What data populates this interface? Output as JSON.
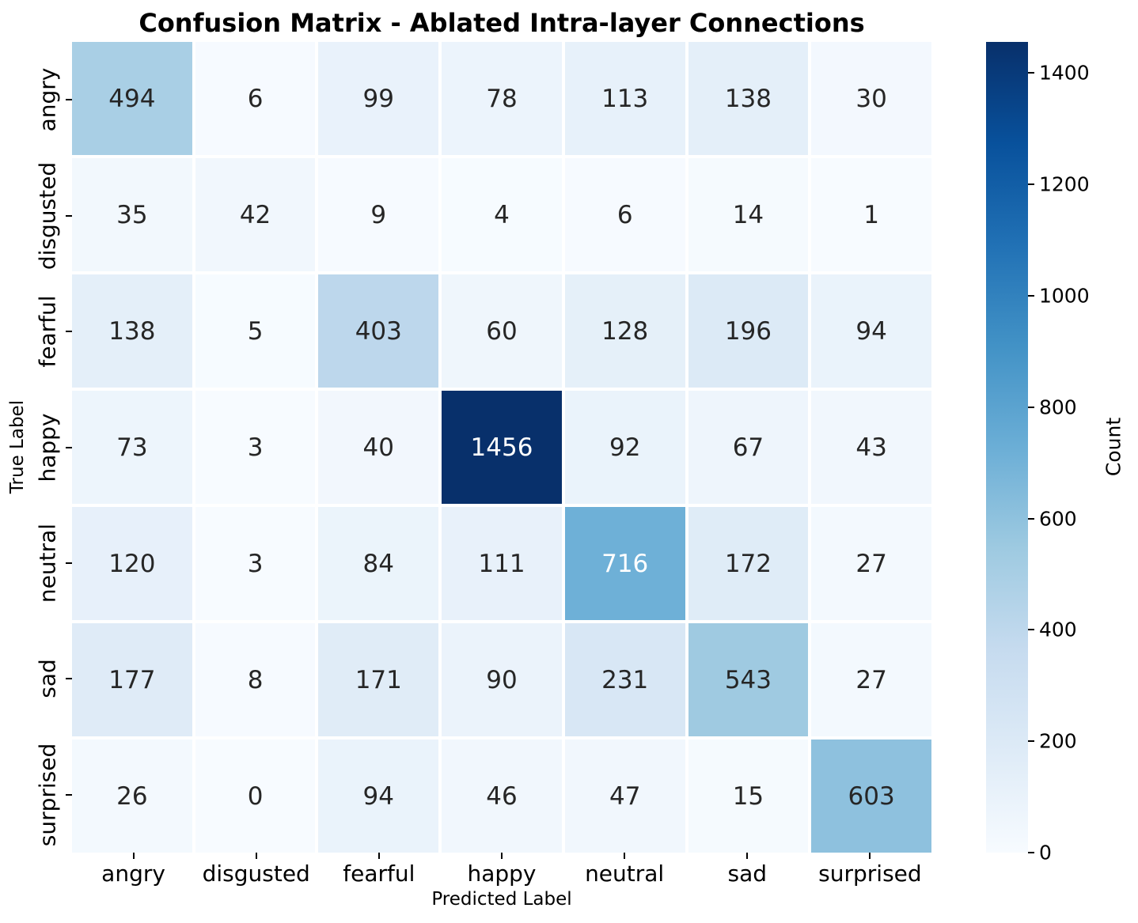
{
  "chart_data": {
    "type": "heatmap",
    "title": "Confusion Matrix - Ablated Intra-layer Connections",
    "xlabel": "Predicted Label",
    "ylabel": "True Label",
    "x_categories": [
      "angry",
      "disgusted",
      "fearful",
      "happy",
      "neutral",
      "sad",
      "surprised"
    ],
    "y_categories": [
      "angry",
      "disgusted",
      "fearful",
      "happy",
      "neutral",
      "sad",
      "surprised"
    ],
    "values": [
      [
        494,
        6,
        99,
        78,
        113,
        138,
        30
      ],
      [
        35,
        42,
        9,
        4,
        6,
        14,
        1
      ],
      [
        138,
        5,
        403,
        60,
        128,
        196,
        94
      ],
      [
        73,
        3,
        40,
        1456,
        92,
        67,
        43
      ],
      [
        120,
        3,
        84,
        111,
        716,
        172,
        27
      ],
      [
        177,
        8,
        171,
        90,
        231,
        543,
        27
      ],
      [
        26,
        0,
        94,
        46,
        47,
        15,
        603
      ]
    ],
    "vmin": 0,
    "vmax": 1456,
    "colormap": "Blues",
    "colormap_stops": [
      "#f7fbff",
      "#deebf7",
      "#c6dbef",
      "#9ecae1",
      "#6baed6",
      "#4292c6",
      "#2171b5",
      "#08519c",
      "#08306b"
    ],
    "annotation_text_dark": "#262626",
    "annotation_text_light": "#ffffff",
    "annotated": true,
    "grid": false,
    "colorbar": {
      "label": "Count",
      "position": "right",
      "ticks": [
        0,
        200,
        400,
        600,
        800,
        1000,
        1200,
        1400
      ]
    }
  }
}
